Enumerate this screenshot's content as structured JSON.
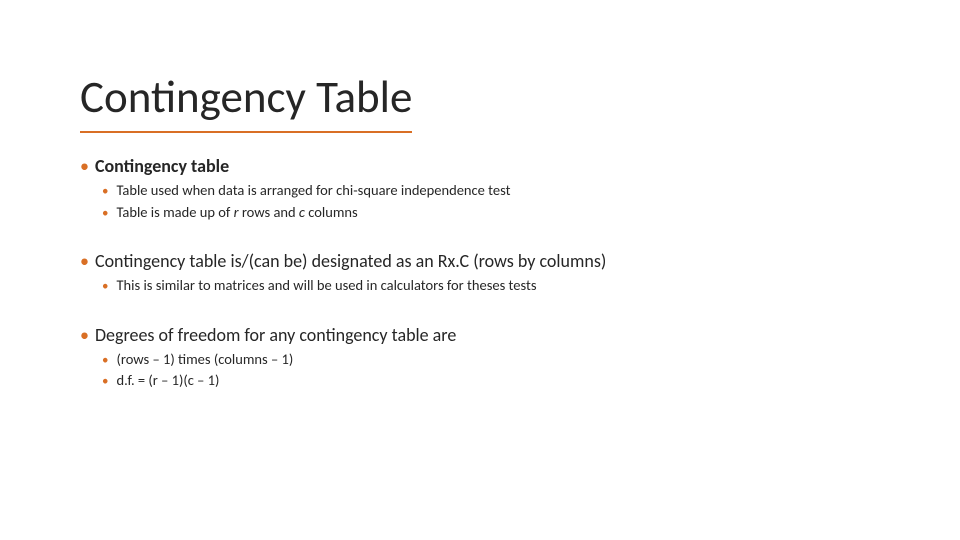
{
  "colors": {
    "accent": "#d96f25",
    "text": "#262626",
    "background": "#ffffff"
  },
  "typography": {
    "title_fontsize": 45,
    "lvl1_fontsize": 18,
    "lvl2_fontsize": 14.5,
    "font_family": "Segoe UI / Calibri"
  },
  "title": "Contingency Table",
  "sections": [
    {
      "heading": "Contingency table",
      "heading_bold": true,
      "sub": [
        "Table used when data is arranged for chi-square independence test",
        "Table is made up of r rows and c columns"
      ]
    },
    {
      "heading": "Contingency table is/(can be) designated as an Rx.C (rows by columns)",
      "heading_bold": false,
      "sub": [
        "This is similar to matrices and will be used in calculators for theses tests"
      ]
    },
    {
      "heading": "Degrees of freedom for any contingency table are",
      "heading_bold": false,
      "sub": [
        "(rows – 1) times (columns – 1)",
        "d.f. = (r – 1)(c – 1)"
      ]
    }
  ]
}
